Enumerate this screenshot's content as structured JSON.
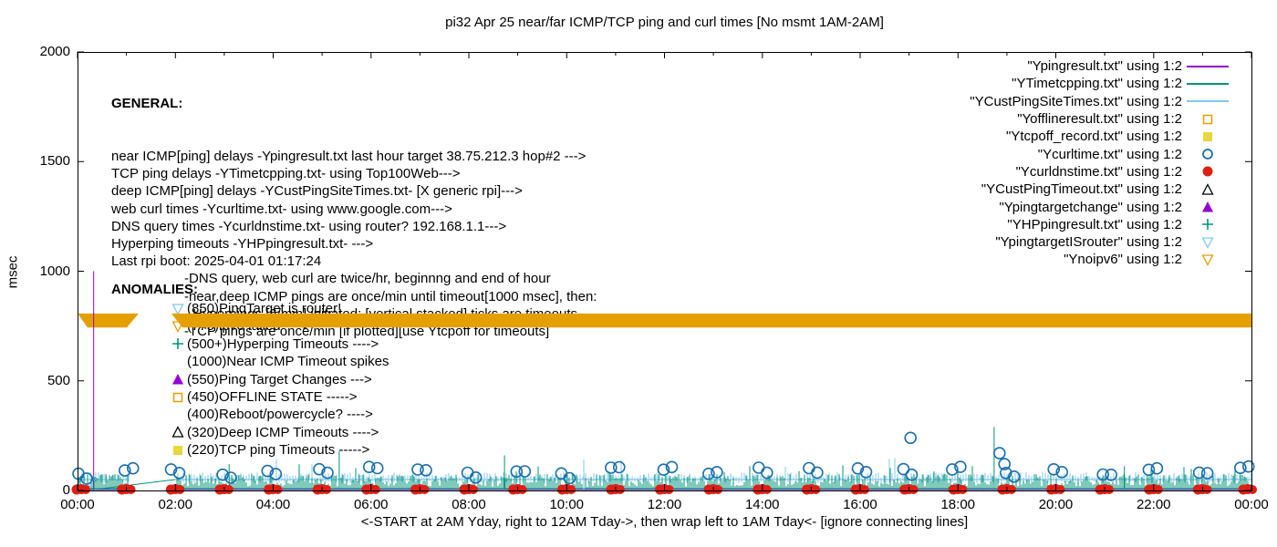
{
  "title": "pi32 Apr 25  near/far ICMP/TCP ping and curl times [No msmt 1AM-2AM]",
  "y_axis": {
    "label": "msec",
    "ticks": [
      "0",
      "500",
      "1000",
      "1500",
      "2000"
    ]
  },
  "x_axis": {
    "label": "<-START at 2AM Yday, right to 12AM Tday->, then wrap left to 1AM Tday<- [ignore connecting lines]",
    "ticks": [
      "00:00",
      "02:00",
      "04:00",
      "06:00",
      "08:00",
      "10:00",
      "12:00",
      "14:00",
      "16:00",
      "18:00",
      "20:00",
      "22:00",
      "00:00"
    ]
  },
  "colors": {
    "purple": "#9400d3",
    "teal": "#009578",
    "sky": "#85c7ea",
    "orange": "#e3a000",
    "yellow": "#e8d83c",
    "blue": "#1a6fae",
    "red": "#dd1f14",
    "black": "#000000"
  },
  "legend": {
    "entries": [
      {
        "label": "\"Ypingresult.txt\" using 1:2",
        "marker": "line",
        "color": "purple"
      },
      {
        "label": "\"YTimetcpping.txt\" using 1:2",
        "marker": "line",
        "color": "teal"
      },
      {
        "label": "\"YCustPingSiteTimes.txt\" using 1:2",
        "marker": "line",
        "color": "sky"
      },
      {
        "label": "\"Yofflineresult.txt\" using 1:2",
        "marker": "square-open",
        "color": "orange"
      },
      {
        "label": "\"Ytcpoff_record.txt\" using 1:2",
        "marker": "square-filled",
        "color": "yellow"
      },
      {
        "label": "\"Ycurltime.txt\" using 1:2",
        "marker": "circle-open",
        "color": "blue"
      },
      {
        "label": "\"Ycurldnstime.txt\" using 1:2",
        "marker": "circle-filled",
        "color": "red"
      },
      {
        "label": "\"YCustPingTimeout.txt\" using 1:2",
        "marker": "tri-up-open",
        "color": "black"
      },
      {
        "label": "\"Ypingtargetchange\" using 1:2",
        "marker": "tri-up-filled",
        "color": "purple"
      },
      {
        "label": "\"YHPpingresult.txt\" using 1:2",
        "marker": "plus",
        "color": "teal"
      },
      {
        "label": "\"YpingtargetISrouter\" using 1:2",
        "marker": "tri-down-open",
        "color": "sky"
      },
      {
        "label": "\"Ynoipv6\" using 1:2",
        "marker": "tri-down-open",
        "color": "orange"
      }
    ]
  },
  "general": {
    "heading": "GENERAL:",
    "lines": [
      "near ICMP[ping] delays -Ypingresult.txt last hour target 38.75.212.3 hop#2 --->",
      "TCP ping delays -YTimetcpping.txt- using Top100Web--->",
      "deep ICMP[ping] delays -YCustPingSiteTimes.txt- [X generic rpi]--->",
      "web curl times -Ycurltime.txt- using www.google.com--->",
      "DNS query times -Ycurldnstime.txt- using router? 192.168.1.1--->",
      "Hyperping timeouts -YHPpingresult.txt- --->",
      "Last rpi boot: 2025-04-01 01:17:24"
    ],
    "notes": [
      "-DNS query, web curl are twice/hr, beginnng and end of hour",
      "-near,deep ICMP pings are once/min until timeout[1000 msec], then:",
      " -Hyperpings [6/min] initiated; [vertical stacked] ticks are timeouts",
      "-TCP pings are once/min [if plotted][use Ytcpoff for timeouts]"
    ]
  },
  "anomalies": {
    "heading": "ANOMALIES:",
    "items": [
      {
        "marker": "tri-down-open",
        "color": "sky",
        "text": "(850)PingTarget is router!"
      },
      {
        "marker": "tri-down-open",
        "color": "orange",
        "text": "(775)ipv6 failed ---->"
      },
      {
        "marker": "plus",
        "color": "teal",
        "text": "(500+)Hyperping Timeouts ---->"
      },
      {
        "marker": "none",
        "color": "black",
        "text": "(1000)Near ICMP Timeout spikes"
      },
      {
        "marker": "tri-up-filled",
        "color": "purple",
        "text": "(550)Ping Target Changes --->"
      },
      {
        "marker": "square-open",
        "color": "orange",
        "text": "(450)OFFLINE STATE ----->"
      },
      {
        "marker": "none",
        "color": "black",
        "text": "(400)Reboot/powercycle? ---->"
      },
      {
        "marker": "tri-up-open",
        "color": "black",
        "text": "(320)Deep ICMP Timeouts ---->"
      },
      {
        "marker": "square-filled",
        "color": "yellow",
        "text": "(220)TCP ping Timeouts ----->"
      }
    ]
  },
  "chart_data": {
    "type": "line",
    "title": "pi32 Apr 25  near/far ICMP/TCP ping and curl times [No msmt 1AM-2AM]",
    "xlabel": "<-START at 2AM Yday, right to 12AM Tday->, then wrap left to 1AM Tday<- [ignore connecting lines]",
    "ylabel": "msec",
    "ylim": [
      0,
      2000
    ],
    "y_ticks": [
      0,
      500,
      1000,
      1500,
      2000
    ],
    "x_hours": [
      0,
      24
    ],
    "x_tick_step_hours": 2,
    "no_measurement_window_hours": [
      1.05,
      2.0
    ],
    "series": [
      {
        "name": "Ypingresult.txt",
        "color": "purple",
        "style": "line",
        "typical_msec": 3,
        "timeout_spike": {
          "hour": 0.33,
          "value_msec": 1000
        }
      },
      {
        "name": "YTimetcpping.txt",
        "color": "teal",
        "style": "line",
        "noise_msec": [
          0,
          70
        ]
      },
      {
        "name": "YCustPingSiteTimes.txt",
        "color": "sky",
        "style": "line",
        "baseline_msec": 55,
        "noise_msec": [
          40,
          90
        ]
      },
      {
        "name": "Ycurltime.txt",
        "color": "blue",
        "style": "open-circle",
        "cadence_per_hour": 2,
        "typical_msec": [
          50,
          110
        ],
        "outliers": [
          {
            "hour": 17.03,
            "value_msec": 240
          },
          {
            "hour": 18.85,
            "value_msec": 170
          },
          {
            "hour": 18.95,
            "value_msec": 120
          }
        ]
      },
      {
        "name": "Ycurldnstime.txt",
        "color": "red",
        "style": "filled-circle",
        "cadence_per_hour": 2,
        "typical_msec": [
          0,
          8
        ]
      },
      {
        "name": "Ynoipv6",
        "color": "orange",
        "style": "band",
        "value_msec": 775,
        "band_halfwidth_msec": 32,
        "gap_hours": [
          1.25,
          1.92
        ],
        "note": "ipv6 failed all day"
      }
    ],
    "spikes": [
      {
        "hour": 3.1,
        "value_msec": 120,
        "color": "teal"
      },
      {
        "hour": 5.35,
        "value_msec": 180,
        "color": "teal"
      },
      {
        "hour": 8.73,
        "value_msec": 160,
        "color": "teal"
      },
      {
        "hour": 10.35,
        "value_msec": 140,
        "color": "sky"
      },
      {
        "hour": 18.74,
        "value_msec": 290,
        "color": "teal"
      },
      {
        "hour": 21.4,
        "value_msec": 110,
        "color": "teal"
      }
    ]
  }
}
